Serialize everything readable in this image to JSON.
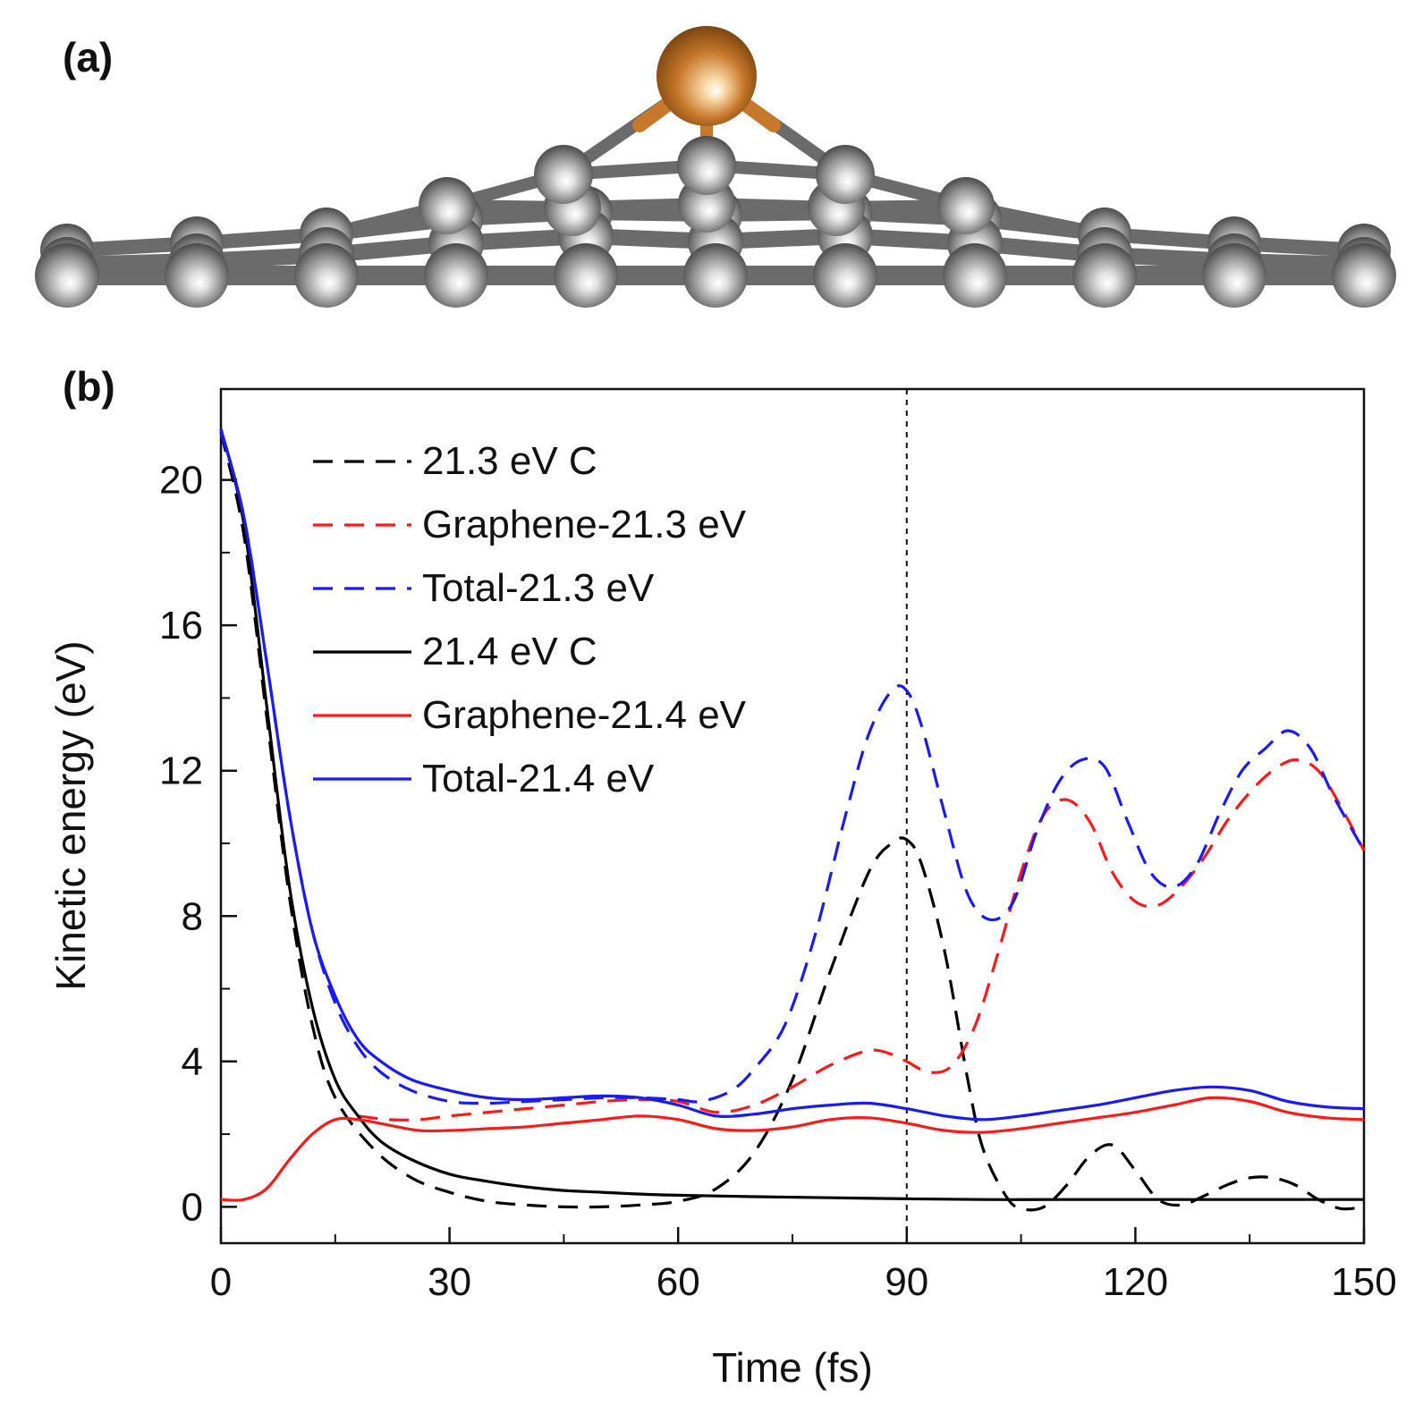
{
  "panel_a": {
    "label": "(a)",
    "structure": {
      "adatom_color": "#c8782a",
      "carbon_color": "#8a8a8a",
      "bond_color": "#6b6b6b"
    }
  },
  "chart_data": {
    "type": "line",
    "panel_label": "(b)",
    "xlabel": "Time (fs)",
    "ylabel": "Kinetic energy (eV)",
    "xlim": [
      0,
      150
    ],
    "ylim": [
      -1,
      22.5
    ],
    "x_ticks": [
      0,
      30,
      60,
      90,
      120,
      150
    ],
    "y_ticks": [
      0,
      4,
      8,
      12,
      16,
      20
    ],
    "vline_x": 90,
    "legend_position": "top-left",
    "series": [
      {
        "name": "21.3 eV C",
        "color": "#000000",
        "dash": true,
        "x": [
          0,
          3,
          6,
          9,
          12,
          15,
          20,
          25,
          30,
          35,
          40,
          45,
          50,
          55,
          60,
          65,
          70,
          75,
          80,
          85,
          88,
          90,
          92,
          95,
          98,
          100,
          103,
          105,
          108,
          111,
          114,
          117,
          120,
          123,
          126,
          129,
          132,
          135,
          138,
          141,
          144,
          147,
          150
        ],
        "y": [
          21.3,
          18.5,
          13.5,
          8.5,
          5.0,
          3.0,
          1.6,
          0.8,
          0.4,
          0.15,
          0.05,
          0.0,
          0.0,
          0.05,
          0.15,
          0.5,
          1.5,
          3.5,
          6.5,
          9.2,
          10.0,
          10.1,
          9.4,
          7.0,
          3.5,
          1.6,
          0.3,
          -0.05,
          0.0,
          0.6,
          1.4,
          1.7,
          1.0,
          0.2,
          0.05,
          0.3,
          0.6,
          0.8,
          0.8,
          0.6,
          0.2,
          -0.05,
          0.0
        ]
      },
      {
        "name": "Graphene-21.3 eV",
        "color": "#ff1a1a",
        "dash": true,
        "x": [
          18,
          22,
          26,
          30,
          35,
          40,
          45,
          50,
          55,
          60,
          65,
          70,
          75,
          80,
          85,
          88,
          90,
          93,
          96,
          99,
          102,
          105,
          108,
          111,
          114,
          117,
          120,
          123,
          126,
          129,
          132,
          135,
          138,
          141,
          144,
          147,
          150
        ],
        "y": [
          2.5,
          2.4,
          2.4,
          2.5,
          2.6,
          2.7,
          2.8,
          2.9,
          2.95,
          2.9,
          2.6,
          2.8,
          3.3,
          3.9,
          4.3,
          4.2,
          4.0,
          3.7,
          3.9,
          5.0,
          7.0,
          9.2,
          10.8,
          11.2,
          10.6,
          9.2,
          8.4,
          8.3,
          8.8,
          9.6,
          10.6,
          11.4,
          12.0,
          12.3,
          12.0,
          11.0,
          9.8
        ]
      },
      {
        "name": "Total-21.3 eV",
        "color": "#1a1aff",
        "dash": true,
        "x": [
          0,
          3,
          6,
          9,
          12,
          15,
          18,
          21,
          25,
          30,
          35,
          40,
          45,
          50,
          55,
          60,
          63,
          67,
          70,
          74,
          78,
          82,
          85,
          88,
          90,
          92,
          95,
          98,
          101,
          104,
          107,
          110,
          113,
          116,
          119,
          122,
          125,
          128,
          131,
          134,
          137,
          140,
          143,
          146,
          150
        ],
        "y": [
          21.3,
          19.0,
          15.0,
          10.8,
          7.6,
          5.6,
          4.4,
          3.7,
          3.2,
          2.9,
          2.85,
          2.9,
          2.95,
          3.0,
          3.0,
          2.95,
          2.9,
          3.2,
          3.8,
          5.0,
          7.5,
          10.8,
          13.0,
          14.2,
          14.2,
          13.2,
          10.8,
          8.6,
          7.9,
          8.4,
          10.3,
          11.7,
          12.3,
          12.1,
          10.6,
          9.2,
          8.8,
          9.4,
          10.8,
          12.0,
          12.6,
          13.1,
          12.6,
          11.3,
          9.8
        ]
      },
      {
        "name": "21.4 eV C",
        "color": "#000000",
        "dash": false,
        "x": [
          0,
          3,
          6,
          9,
          12,
          15,
          18,
          21,
          25,
          30,
          35,
          40,
          45,
          50,
          55,
          60,
          70,
          80,
          90,
          100,
          110,
          120,
          130,
          140,
          150
        ],
        "y": [
          21.4,
          18.8,
          13.8,
          8.8,
          5.5,
          3.5,
          2.5,
          1.8,
          1.3,
          0.9,
          0.7,
          0.55,
          0.45,
          0.4,
          0.35,
          0.32,
          0.28,
          0.25,
          0.22,
          0.2,
          0.2,
          0.2,
          0.2,
          0.2,
          0.2
        ]
      },
      {
        "name": "Graphene-21.4 eV",
        "color": "#ff1a1a",
        "dash": false,
        "x": [
          0,
          3,
          6,
          9,
          12,
          15,
          18,
          22,
          26,
          30,
          35,
          40,
          45,
          50,
          55,
          60,
          65,
          70,
          75,
          80,
          85,
          90,
          95,
          100,
          105,
          110,
          115,
          120,
          125,
          130,
          135,
          140,
          145,
          150
        ],
        "y": [
          0.2,
          0.2,
          0.5,
          1.3,
          2.0,
          2.4,
          2.4,
          2.25,
          2.1,
          2.1,
          2.15,
          2.2,
          2.3,
          2.4,
          2.5,
          2.4,
          2.15,
          2.1,
          2.2,
          2.4,
          2.45,
          2.3,
          2.1,
          2.05,
          2.15,
          2.3,
          2.45,
          2.6,
          2.8,
          3.0,
          2.9,
          2.6,
          2.45,
          2.4
        ]
      },
      {
        "name": "Total-21.4 eV",
        "color": "#1a1aff",
        "dash": false,
        "x": [
          0,
          3,
          6,
          9,
          12,
          15,
          18,
          21,
          25,
          30,
          35,
          40,
          45,
          50,
          55,
          60,
          65,
          70,
          75,
          80,
          85,
          90,
          95,
          100,
          105,
          110,
          115,
          120,
          125,
          130,
          135,
          140,
          145,
          150
        ],
        "y": [
          21.4,
          19.0,
          15.0,
          10.8,
          7.6,
          5.8,
          4.6,
          4.0,
          3.5,
          3.2,
          3.0,
          2.95,
          3.0,
          3.05,
          3.0,
          2.8,
          2.5,
          2.55,
          2.7,
          2.8,
          2.85,
          2.7,
          2.5,
          2.4,
          2.5,
          2.65,
          2.8,
          3.0,
          3.2,
          3.3,
          3.2,
          2.9,
          2.75,
          2.7
        ]
      }
    ]
  }
}
